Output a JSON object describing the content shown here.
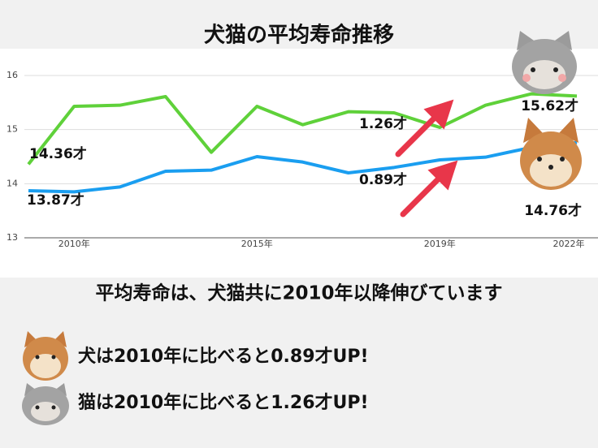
{
  "chart_data": {
    "type": "line",
    "title": "犬猫の平均寿命推移",
    "categories": [
      null,
      "2010年",
      null,
      null,
      null,
      "2015年",
      null,
      null,
      null,
      "2019年",
      null,
      null,
      "2022年"
    ],
    "ylim": [
      13,
      16
    ],
    "yticks": [
      13,
      14,
      15,
      16
    ],
    "grid": true,
    "series": [
      {
        "name": "猫",
        "color": "#5fd13a",
        "values": [
          14.36,
          15.43,
          15.45,
          15.61,
          14.58,
          15.43,
          15.09,
          15.33,
          15.31,
          15.04,
          15.45,
          15.66,
          15.62
        ],
        "value_labels": [
          "14.36才",
          null,
          null,
          null,
          null,
          null,
          null,
          null,
          null,
          null,
          null,
          null,
          "15.62才"
        ]
      },
      {
        "name": "犬",
        "color": "#1a9ef0",
        "values": [
          13.87,
          13.85,
          13.94,
          14.23,
          14.25,
          14.5,
          14.4,
          14.2,
          14.3,
          14.44,
          14.49,
          14.67,
          14.76
        ],
        "value_labels": [
          "13.87才",
          null,
          null,
          null,
          null,
          null,
          null,
          null,
          null,
          null,
          null,
          null,
          "14.76才"
        ]
      }
    ],
    "annotations": [
      "1.26才",
      "0.89才"
    ]
  },
  "summary": {
    "heading": "平均寿命は、犬猫共に2010年以降伸びています",
    "lines": [
      "犬は2010年に比べると0.89才UP!",
      "猫は2010年に比べると1.26才UP!"
    ]
  }
}
